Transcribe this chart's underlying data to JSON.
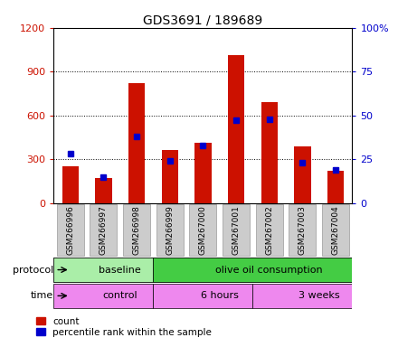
{
  "title": "GDS3691 / 189689",
  "samples": [
    "GSM266996",
    "GSM266997",
    "GSM266998",
    "GSM266999",
    "GSM267000",
    "GSM267001",
    "GSM267002",
    "GSM267003",
    "GSM267004"
  ],
  "count_values": [
    250,
    170,
    820,
    360,
    415,
    1010,
    690,
    390,
    220
  ],
  "percentile_values": [
    28,
    15,
    38,
    24,
    33,
    47,
    48,
    23,
    19
  ],
  "ylim_left": [
    0,
    1200
  ],
  "ylim_right": [
    0,
    100
  ],
  "yticks_left": [
    0,
    300,
    600,
    900,
    1200
  ],
  "yticks_right": [
    0,
    25,
    50,
    75,
    100
  ],
  "yticklabels_left": [
    "0",
    "300",
    "600",
    "900",
    "1200"
  ],
  "yticklabels_right": [
    "0",
    "25",
    "50",
    "75",
    "100%"
  ],
  "bar_color_red": "#CC1100",
  "bar_color_blue": "#0000CC",
  "bar_width": 0.5,
  "blue_marker_size": 8,
  "protocol_labels": [
    "baseline",
    "olive oil consumption"
  ],
  "protocol_col_spans": [
    3,
    6
  ],
  "protocol_colors": [
    "#AAEEA8",
    "#44CC44"
  ],
  "time_labels": [
    "control",
    "6 hours",
    "3 weeks"
  ],
  "time_col_spans": [
    3,
    3,
    3
  ],
  "time_color": "#EE88EE",
  "legend_count_label": "count",
  "legend_percentile_label": "percentile rank within the sample",
  "left_label_color": "#CC1100",
  "right_label_color": "#0000CC",
  "tick_label_bg": "#CCCCCC",
  "tick_label_edge": "#999999"
}
